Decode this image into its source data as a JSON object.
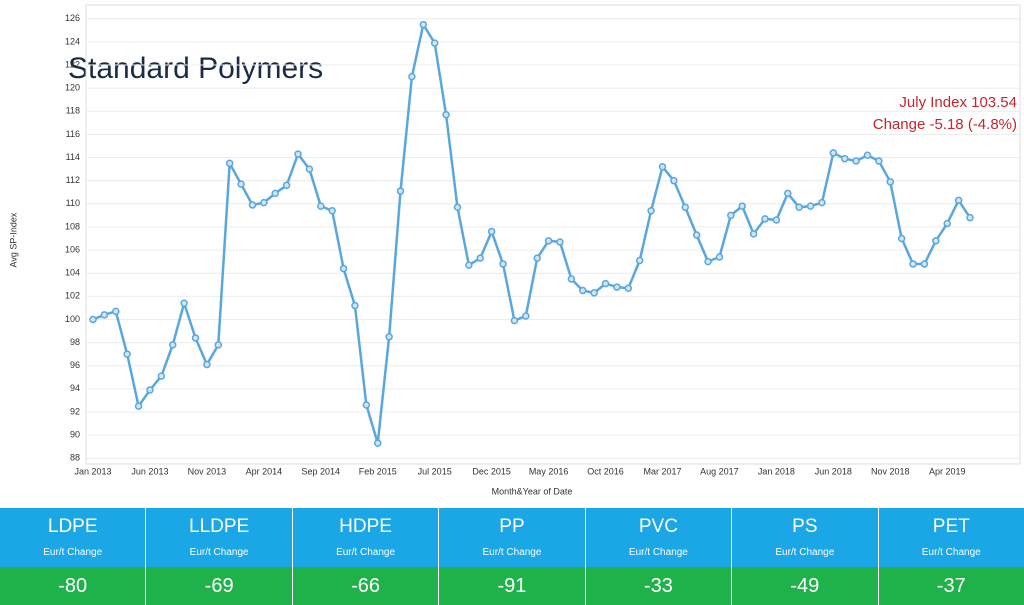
{
  "chart_data": {
    "type": "line",
    "title": "Standard Polymers",
    "annotations": [
      "July Index 103.54",
      "Change -5.18 (-4.8%)"
    ],
    "y_label": "Avg SP-Index",
    "x_label": "Month&Year of Date",
    "categories": [
      "Jan 2013",
      null,
      null,
      null,
      null,
      "Jun 2013",
      null,
      null,
      null,
      null,
      "Nov 2013",
      null,
      null,
      null,
      null,
      "Apr 2014",
      null,
      null,
      null,
      null,
      "Sep 2014",
      null,
      null,
      null,
      null,
      "Feb 2015",
      null,
      null,
      null,
      null,
      "Jul 2015",
      null,
      null,
      null,
      null,
      "Dec 2015",
      null,
      null,
      null,
      null,
      "May 2016",
      null,
      null,
      null,
      null,
      "Oct 2016",
      null,
      null,
      null,
      null,
      "Mar 2017",
      null,
      null,
      null,
      null,
      "Aug 2017",
      null,
      null,
      null,
      null,
      "Jan 2018",
      null,
      null,
      null,
      null,
      "Jun 2018",
      null,
      null,
      null,
      null,
      "Nov 2018",
      null,
      null,
      null,
      null,
      "Apr 2019",
      null,
      null
    ],
    "series": [
      {
        "name": "Avg SP-Index",
        "color": "#5aa7de",
        "values": [
          100.0,
          100.4,
          100.7,
          97.0,
          92.5,
          93.9,
          95.1,
          97.8,
          101.4,
          98.4,
          96.1,
          97.8,
          113.5,
          111.7,
          109.9,
          110.1,
          110.9,
          111.6,
          114.3,
          113.0,
          109.8,
          109.4,
          104.4,
          101.2,
          92.6,
          89.3,
          98.5,
          111.1,
          121.0,
          125.5,
          123.9,
          117.7,
          109.7,
          104.7,
          105.3,
          107.6,
          104.8,
          99.9,
          100.3,
          105.3,
          106.8,
          106.7,
          103.5,
          102.5,
          102.3,
          103.1,
          102.8,
          102.7,
          105.1,
          109.4,
          113.2,
          112.0,
          109.7,
          107.3,
          105.0,
          105.4,
          109.0,
          109.8,
          107.4,
          108.7,
          108.6,
          110.9,
          109.7,
          109.8,
          110.1,
          114.4,
          113.9,
          113.7,
          114.2,
          113.7,
          111.9,
          107.0,
          104.8,
          104.8,
          106.8,
          108.3,
          110.3,
          108.8
        ]
      }
    ],
    "ylim": [
      87.5,
      126.5
    ],
    "yticks": [
      88,
      90,
      92,
      94,
      96,
      98,
      100,
      102,
      104,
      106,
      108,
      110,
      112,
      114,
      116,
      118,
      120,
      122,
      124,
      126
    ],
    "grid": true
  },
  "table": {
    "columns": [
      "LDPE",
      "LLDPE",
      "HDPE",
      "PP",
      "PVC",
      "PS",
      "PET"
    ],
    "subheader": "Eur/t Change",
    "values": [
      -80,
      -69,
      -66,
      -91,
      -33,
      -49,
      -37
    ]
  }
}
